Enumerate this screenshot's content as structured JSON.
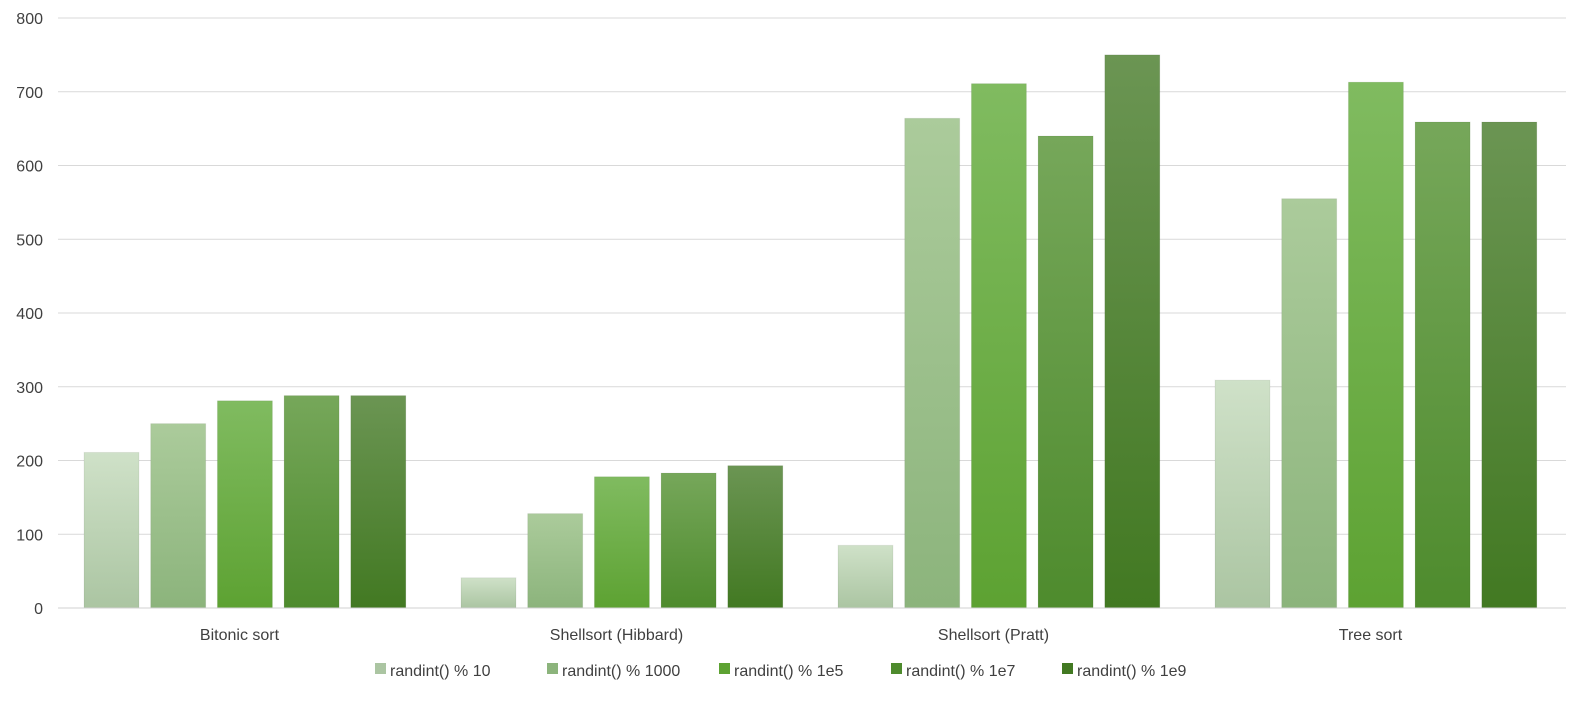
{
  "chart_data": {
    "type": "bar",
    "title": "",
    "xlabel": "",
    "ylabel": "",
    "ylim": [
      0,
      800
    ],
    "yticks": [
      0,
      100,
      200,
      300,
      400,
      500,
      600,
      700,
      800
    ],
    "grid": true,
    "legend_position": "bottom",
    "categories": [
      "Bitonic sort",
      "Shellsort (Hibbard)",
      "Shellsort (Pratt)",
      "Tree sort"
    ],
    "series": [
      {
        "name": "randint() % 10",
        "values": [
          211,
          41,
          85,
          309
        ],
        "color_top": "#cfe1c8",
        "color_bottom": "#abc5a2"
      },
      {
        "name": "randint() % 1000",
        "values": [
          250,
          128,
          664,
          555
        ],
        "color_top": "#abcb9b",
        "color_bottom": "#8cb47c"
      },
      {
        "name": "randint() % 1e5",
        "values": [
          281,
          178,
          711,
          713
        ],
        "color_top": "#80bb60",
        "color_bottom": "#5da232"
      },
      {
        "name": "randint() % 1e7",
        "values": [
          288,
          183,
          640,
          659
        ],
        "color_top": "#76a75a",
        "color_bottom": "#4e8b2d"
      },
      {
        "name": "randint() % 1e9",
        "values": [
          288,
          193,
          750,
          659
        ],
        "color_top": "#6b9553",
        "color_bottom": "#427922"
      }
    ]
  }
}
